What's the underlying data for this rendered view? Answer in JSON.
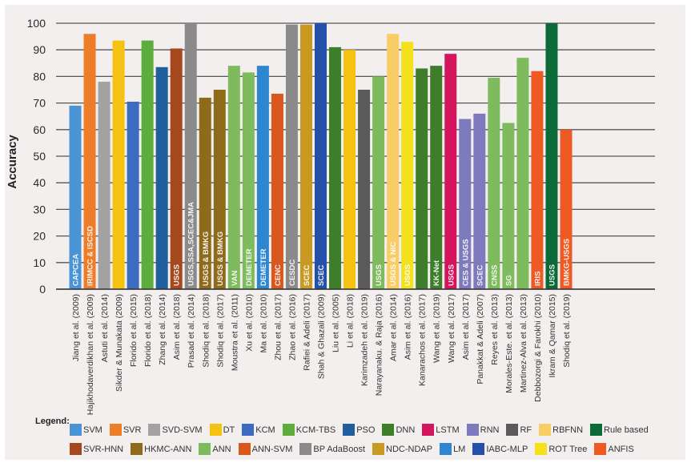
{
  "chart_data": {
    "type": "bar",
    "title": "",
    "xlabel": "",
    "ylabel": "Accuracy",
    "ylim": [
      0,
      100
    ],
    "yticks": [
      0,
      10,
      20,
      30,
      40,
      50,
      60,
      70,
      80,
      90,
      100
    ],
    "grid": true,
    "legend_title": "Legend:",
    "legend_position": "bottom",
    "legend": [
      {
        "name": "SVM",
        "color": "#4a93d4"
      },
      {
        "name": "SVR",
        "color": "#ee7d2a"
      },
      {
        "name": "SVD-SVM",
        "color": "#a2a2a2"
      },
      {
        "name": "DT",
        "color": "#f6c211"
      },
      {
        "name": "KCM",
        "color": "#3b6cc0"
      },
      {
        "name": "KCM-TBS",
        "color": "#5dad3c"
      },
      {
        "name": "PSO",
        "color": "#1f5f9e"
      },
      {
        "name": "DNN",
        "color": "#3e7d2a"
      },
      {
        "name": "LSTM",
        "color": "#d4155e"
      },
      {
        "name": "RNN",
        "color": "#7d7bbd"
      },
      {
        "name": "RF",
        "color": "#5a5a5a"
      },
      {
        "name": "RBFNN",
        "color": "#f9cd66"
      },
      {
        "name": "Rule based",
        "color": "#0b6a38"
      },
      {
        "name": "SVR-HNN",
        "color": "#a5481e"
      },
      {
        "name": "HKMC-ANN",
        "color": "#8d6b1a"
      },
      {
        "name": "ANN",
        "color": "#7dbb5c"
      },
      {
        "name": "ANN-SVM",
        "color": "#d9581e"
      },
      {
        "name": "BP AdaBoost",
        "color": "#8a8a8a"
      },
      {
        "name": "NDC-NDAP",
        "color": "#c99a22"
      },
      {
        "name": "LM",
        "color": "#2f86d0"
      },
      {
        "name": "IABC-MLP",
        "color": "#2350a8"
      },
      {
        "name": "ROT Tree",
        "color": "#f3e21b"
      },
      {
        "name": "ANFIS",
        "color": "#ee5a24"
      }
    ],
    "categories": [
      "Jiang et al. (2009)",
      "Hajikhodaverdikhan et al. (2009)",
      "Astuti et al. (2014)",
      "Sikder & Munakata (2009)",
      "Florido et al. (2015)",
      "Florido et al. (2018)",
      "Zhang et al. (2014)",
      "Asim et al. (2018)",
      "Prasad et al. (2014)",
      "Shodiq et al. (2018)",
      "Shodiq et al. (2017)",
      "Moustra et al. (2011)",
      "Xu et al. (2010)",
      "Ma et al. (2010)",
      "Zhou et al. (2017)",
      "Zhao et al. (2016)",
      "Rafiei & Adeli (2017)",
      "Shah & Ghazali (2009)",
      "Liu et al. (2005)",
      "Li et al. (2018)",
      "Karimzadeh et al. (2019)",
      "Narayanaku. & Raja (2016)",
      "Amar et al. (2014)",
      "Asim et al. (2016)",
      "Kanarachos et al. (2017)",
      "Wang et al. (2019)",
      "Wang et al. (2017)",
      "Asim et al. (2017)",
      "Panakkat & Adeli (2007)",
      "Reyes et al. (2013)",
      "Morales-Este. et al. (2013)",
      "Martinez-Alva et al. (2013)",
      "Debbozorgi & Farokhi (2010)",
      "Ikram & Qamar (2015)",
      "Shodiq et al. (2019)"
    ],
    "values": [
      69,
      96,
      78,
      93.5,
      70.5,
      93.5,
      83.5,
      90.5,
      100,
      72,
      75,
      84,
      81.5,
      84,
      73.5,
      99.5,
      99.5,
      100,
      91,
      90,
      75,
      80,
      96,
      93,
      83,
      84,
      88.5,
      64,
      66,
      79.5,
      62.5,
      87,
      82,
      100,
      60
    ],
    "methods": [
      "SVM",
      "SVR",
      "SVD-SVM",
      "DT",
      "KCM",
      "KCM-TBS",
      "PSO",
      "SVR-HNN",
      "BP AdaBoost",
      "HKMC-ANN",
      "HKMC-ANN",
      "ANN",
      "ANN",
      "LM",
      "ANN-SVM",
      "BP AdaBoost",
      "NDC-NDAP",
      "IABC-MLP",
      "DNN",
      "DT",
      "RF",
      "ANN",
      "RBFNN",
      "ROT Tree",
      "DNN",
      "DNN",
      "LSTM",
      "RNN",
      "RNN",
      "ANN",
      "ANN",
      "ANN",
      "ANFIS",
      "Rule based",
      "ANFIS"
    ],
    "bar_labels": [
      "CAPCEA",
      "IRIMCC & ISCSD",
      "",
      "",
      "",
      "",
      "",
      "USGS",
      "USGS,SSA,SCEC&JMA",
      "USGS & BMKG",
      "USGS & BMKG",
      "VAN",
      "DEMETER",
      "DEMETER",
      "CENC",
      "CESDC",
      "SCEC",
      "SCEC",
      "",
      "",
      "",
      "USGS",
      "USGS & NIC",
      "USGS",
      "",
      "KK-Net",
      "USGS",
      "CES & USGS",
      "SCEC",
      "CNSS",
      "SG",
      "",
      "IRIS",
      "USGS",
      "BMKG-USGS"
    ]
  }
}
